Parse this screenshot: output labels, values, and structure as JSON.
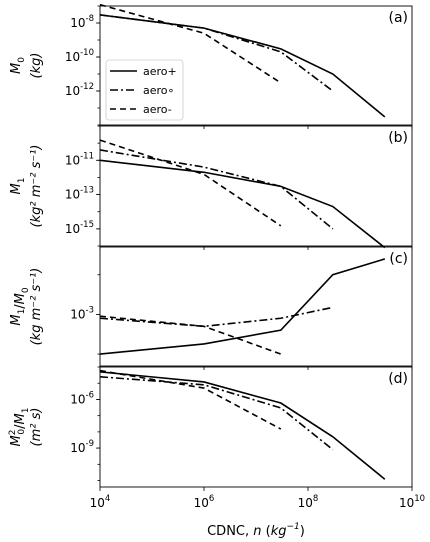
{
  "chart_data": [
    {
      "type": "line",
      "panel_label": "(a)",
      "ylabel_main": "M",
      "ylabel_sub": "0",
      "ylabel_unit": "(kg)",
      "xscale": "log",
      "yscale": "log",
      "xlim": [
        10000,
        10000000000
      ],
      "ylim": [
        1e-14,
        1e-07
      ],
      "yticks": [
        {
          "value": 1e-08,
          "exp": "-8"
        },
        {
          "value": 1e-10,
          "exp": "-10"
        },
        {
          "value": 1e-12,
          "exp": "-12"
        }
      ],
      "legend": {
        "placement": "center-left",
        "entries": [
          "aero+",
          "aero∘",
          "aero-"
        ]
      },
      "series": [
        {
          "name": "aero+",
          "style": "solid",
          "x": [
            10000,
            1000000,
            30000000,
            300000000,
            3000000000
          ],
          "y": [
            3e-08,
            5e-09,
            3e-10,
            1e-11,
            3e-14
          ]
        },
        {
          "name": "aero∘",
          "style": "dashdot",
          "x": [
            10000,
            1000000,
            30000000,
            300000000
          ],
          "y": [
            3e-08,
            5e-09,
            2e-10,
            1e-12
          ]
        },
        {
          "name": "aero-",
          "style": "dashed",
          "x": [
            10000,
            1000000,
            30000000
          ],
          "y": [
            1.2e-07,
            2.5e-09,
            3e-12
          ]
        }
      ]
    },
    {
      "type": "line",
      "panel_label": "(b)",
      "ylabel_main": "M",
      "ylabel_sub": "1",
      "ylabel_unit": "(kg² m⁻² s⁻¹)",
      "xscale": "log",
      "yscale": "log",
      "xlim": [
        10000,
        10000000000
      ],
      "ylim": [
        1e-16,
        1e-09
      ],
      "yticks": [
        {
          "value": 1e-11,
          "exp": "-11"
        },
        {
          "value": 1e-13,
          "exp": "-13"
        },
        {
          "value": 1e-15,
          "exp": "-15"
        }
      ],
      "series": [
        {
          "name": "aero+",
          "style": "solid",
          "x": [
            10000,
            1000000,
            30000000,
            300000000,
            3000000000
          ],
          "y": [
            1e-11,
            2e-12,
            3e-13,
            2e-14,
            8e-17
          ]
        },
        {
          "name": "aero∘",
          "style": "dashdot",
          "x": [
            10000,
            1000000,
            30000000,
            300000000
          ],
          "y": [
            4e-11,
            4e-12,
            3e-13,
            1e-15
          ]
        },
        {
          "name": "aero-",
          "style": "dashed",
          "x": [
            10000,
            1000000,
            30000000
          ],
          "y": [
            1.5e-10,
            1.5e-12,
            1.5e-15
          ]
        }
      ]
    },
    {
      "type": "line",
      "panel_label": "(c)",
      "ylabel_main": "M",
      "ylabel_sub": "1",
      "ylabel_slash": "M",
      "ylabel_sub2": "0",
      "ylabel_unit": "(kg m⁻² s⁻¹)",
      "xscale": "log",
      "yscale": "log",
      "xlim": [
        10000,
        10000000000
      ],
      "ylim": [
        5e-05,
        0.05
      ],
      "yticks": [
        {
          "value": 0.001,
          "exp": "-3"
        }
      ],
      "series": [
        {
          "name": "aero+",
          "style": "solid",
          "x": [
            10000,
            1000000,
            30000000,
            300000000,
            3000000000
          ],
          "y": [
            0.0001,
            0.00018,
            0.0004,
            0.01,
            0.025
          ]
        },
        {
          "name": "aero∘",
          "style": "dashdot",
          "x": [
            10000,
            1000000,
            30000000,
            300000000
          ],
          "y": [
            0.0008,
            0.0005,
            0.0008,
            0.0015
          ]
        },
        {
          "name": "aero-",
          "style": "dashed",
          "x": [
            10000,
            1000000,
            30000000
          ],
          "y": [
            0.0009,
            0.0005,
            0.0001
          ]
        }
      ]
    },
    {
      "type": "line",
      "panel_label": "(d)",
      "ylabel_main": "M",
      "ylabel_sup": "2",
      "ylabel_sub": "0",
      "ylabel_slash": "M",
      "ylabel_sub2": "1",
      "ylabel_unit": "(m² s)",
      "xscale": "log",
      "yscale": "log",
      "xlim": [
        10000,
        10000000000
      ],
      "ylim": [
        4e-12,
        0.0001
      ],
      "yticks": [
        {
          "value": 1e-06,
          "exp": "-6"
        },
        {
          "value": 1e-09,
          "exp": "-9"
        }
      ],
      "series": [
        {
          "name": "aero+",
          "style": "solid",
          "x": [
            10000,
            1000000,
            30000000,
            300000000,
            3000000000
          ],
          "y": [
            5e-05,
            1.2e-05,
            6e-07,
            5e-09,
            1.2e-11
          ]
        },
        {
          "name": "aero∘",
          "style": "dashdot",
          "x": [
            10000,
            1000000,
            30000000,
            300000000
          ],
          "y": [
            2.5e-05,
            8e-06,
            3e-07,
            8e-10
          ]
        },
        {
          "name": "aero-",
          "style": "dashed",
          "x": [
            10000,
            1000000,
            30000000
          ],
          "y": [
            6e-05,
            5e-06,
            1.5e-08
          ]
        }
      ]
    }
  ],
  "shared_x": {
    "label_text": "CDNC, ",
    "label_var": "n",
    "label_unit_open": " (",
    "label_unit_base": "kg",
    "label_unit_exp": "−1",
    "label_unit_close": ")",
    "ticks": [
      {
        "value": 10000,
        "exp": "4"
      },
      {
        "value": 1000000,
        "exp": "6"
      },
      {
        "value": 100000000,
        "exp": "8"
      },
      {
        "value": 10000000000,
        "exp": "10"
      }
    ]
  }
}
